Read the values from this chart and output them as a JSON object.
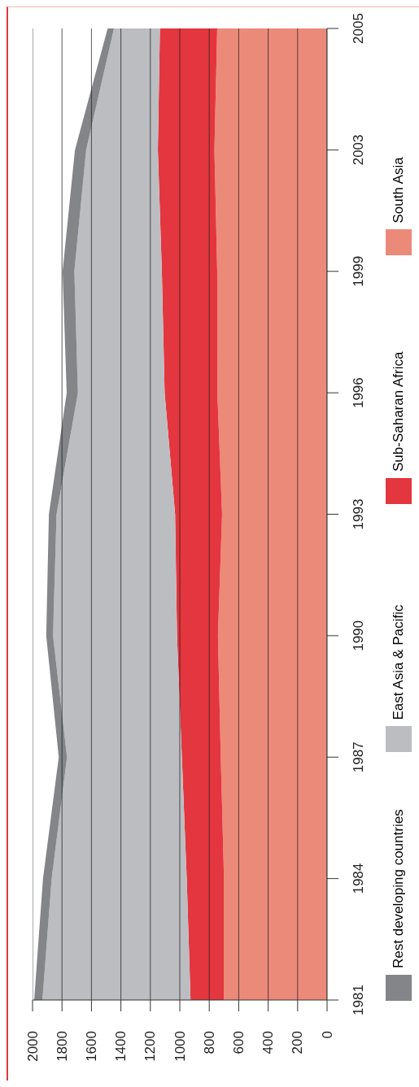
{
  "chart_data": {
    "type": "area",
    "stacked": true,
    "orientation": "horizontal",
    "categories": [
      "2005",
      "2003",
      "1999",
      "1996",
      "1993",
      "1990",
      "1987",
      "1984",
      "1981"
    ],
    "series": [
      {
        "name": "South Asia",
        "color": "#ec8a7a",
        "values": [
          746,
          765,
          746,
          745,
          713,
          741,
          722,
          700,
          700
        ]
      },
      {
        "name": "Sub-Saharan Africa",
        "color": "#e3363e",
        "values": [
          389,
          384,
          376,
          358,
          319,
          278,
          264,
          253,
          227
        ]
      },
      {
        "name": "East Asia & Pacific",
        "color": "#bcbdc1",
        "values": [
          312,
          487,
          594,
          589,
          805,
          842,
          780,
          917,
          1006
        ]
      },
      {
        "name": "Rest developing countries",
        "color": "#848589",
        "values": [
          43,
          76,
          80,
          76,
          52,
          46,
          56,
          59,
          56
        ]
      }
    ],
    "xlim": [
      2000,
      0
    ],
    "xticks": [
      2000,
      1800,
      1600,
      1400,
      1200,
      1000,
      800,
      600,
      400,
      200,
      0
    ],
    "grid": "x",
    "legend": "right"
  }
}
